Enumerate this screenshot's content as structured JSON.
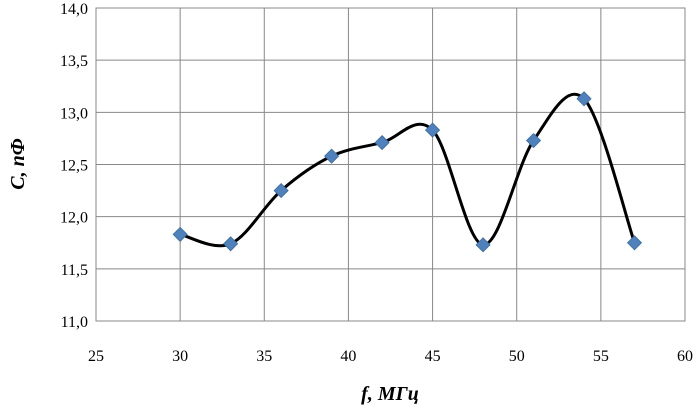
{
  "chart_data": {
    "type": "scatter",
    "xlabel": "f, МГц",
    "ylabel": "C, пФ",
    "xlim": [
      25,
      60
    ],
    "ylim": [
      11.0,
      14.0
    ],
    "x_ticks": [
      25,
      30,
      35,
      40,
      45,
      50,
      55,
      60
    ],
    "x_tick_labels": [
      "25",
      "30",
      "35",
      "40",
      "45",
      "50",
      "55",
      "60"
    ],
    "y_ticks": [
      11.0,
      11.5,
      12.0,
      12.5,
      13.0,
      13.5,
      14.0
    ],
    "y_tick_labels": [
      "11,0",
      "11,5",
      "12,0",
      "12,5",
      "13,0",
      "13,5",
      "14,0"
    ],
    "grid": true,
    "line": "smoothed",
    "series": [
      {
        "x": [
          30,
          33,
          36,
          39,
          42,
          45,
          48,
          51,
          54,
          57
        ],
        "y": [
          11.83,
          11.74,
          12.25,
          12.58,
          12.71,
          12.83,
          11.73,
          12.73,
          13.13,
          11.75
        ],
        "marker": "diamond",
        "marker_color": "#4F81BD",
        "line_color": "#000000"
      }
    ]
  }
}
